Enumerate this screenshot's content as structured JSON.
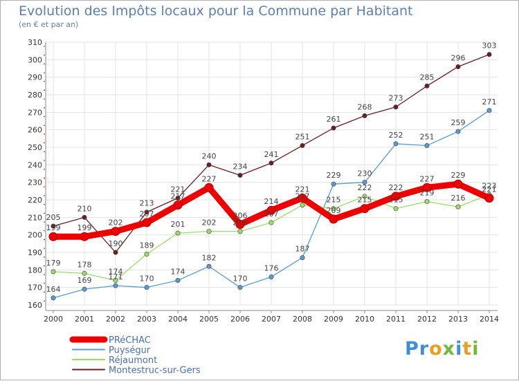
{
  "header": {
    "title": "Evolution des Impôts locaux pour la Commune par Habitant",
    "subtitle": "(en € et par an)"
  },
  "logo": {
    "text": "Proxiti",
    "colors": [
      "#3f8fd6",
      "#e8a020",
      "#73b83b"
    ]
  },
  "chart_data": {
    "type": "line",
    "title": "Evolution des Impôts locaux pour la Commune par Habitant",
    "ylabel": "(en € et par an)",
    "xlabel": "",
    "ylim": [
      160,
      310
    ],
    "yticks": [
      160,
      170,
      180,
      190,
      200,
      210,
      220,
      230,
      240,
      250,
      260,
      270,
      280,
      290,
      300,
      310
    ],
    "categories": [
      "2000",
      "2001",
      "2002",
      "2003",
      "2004",
      "2005",
      "2006",
      "2007",
      "2008",
      "2009",
      "2010",
      "2011",
      "2012",
      "2013",
      "2014"
    ],
    "grid": true,
    "legend_position": "bottom-left",
    "series": [
      {
        "name": "PRéCHAC",
        "color": "#ee0000",
        "values": [
          199,
          199,
          202,
          207,
          217,
          227,
          206,
          214,
          221,
          209,
          215,
          222,
          227,
          229,
          221
        ]
      },
      {
        "name": "Puységur",
        "color": "#5a9ad0",
        "values": [
          164,
          169,
          171,
          170,
          174,
          182,
          170,
          176,
          187,
          229,
          230,
          252,
          251,
          259,
          271
        ]
      },
      {
        "name": "Réjaumont",
        "color": "#99dd66",
        "values": [
          179,
          178,
          174,
          189,
          201,
          202,
          202,
          207,
          217,
          215,
          222,
          215,
          219,
          216,
          223
        ]
      },
      {
        "name": "Montestruc-sur-Gers",
        "color": "#6b1e22",
        "values": [
          205,
          210,
          190,
          213,
          221,
          240,
          234,
          241,
          251,
          261,
          268,
          273,
          285,
          296,
          303
        ]
      }
    ]
  }
}
